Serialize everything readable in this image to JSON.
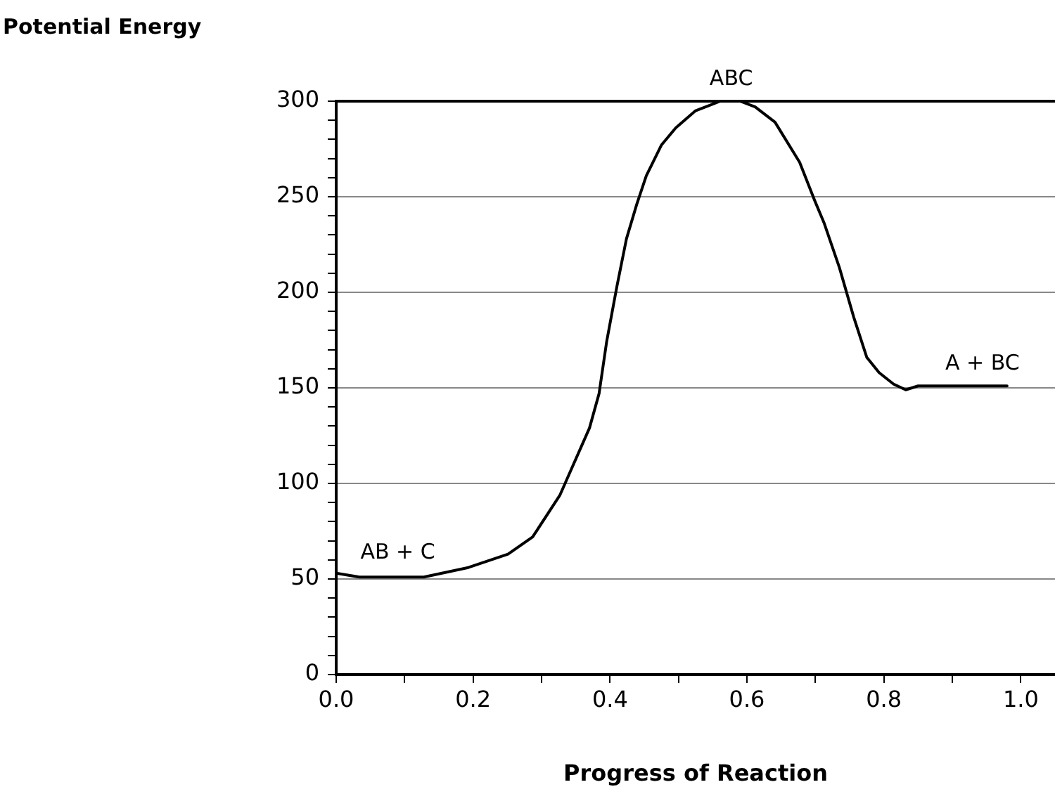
{
  "chart_data": {
    "type": "line",
    "ylabel": "Potential Energy",
    "xlabel": "Progress of Reaction",
    "x": [
      0,
      0.034,
      0.128,
      0.193,
      0.251,
      0.287,
      0.327,
      0.37,
      0.384,
      0.395,
      0.41,
      0.424,
      0.439,
      0.453,
      0.475,
      0.496,
      0.525,
      0.561,
      0.59,
      0.612,
      0.641,
      0.677,
      0.699,
      0.713,
      0.735,
      0.756,
      0.775,
      0.793,
      0.814,
      0.832,
      0.85,
      0.98
    ],
    "series": [
      {
        "color": "#000000",
        "values": [
          53,
          51,
          51,
          56,
          63,
          72,
          94,
          129,
          147,
          174,
          203,
          228,
          246,
          261,
          277,
          286,
          295,
          300,
          300,
          297,
          289,
          268,
          248,
          236,
          213,
          187,
          166,
          158,
          152,
          149,
          151,
          151
        ]
      }
    ],
    "xlim": [
      0,
      1.05
    ],
    "xticks": [
      {
        "value": 0,
        "label": "0.0"
      },
      {
        "value": 0.1,
        "label": null
      },
      {
        "value": 0.2,
        "label": "0.2"
      },
      {
        "value": 0.3,
        "label": null
      },
      {
        "value": 0.4,
        "label": "0.4"
      },
      {
        "value": 0.5,
        "label": null
      },
      {
        "value": 0.6,
        "label": "0.6"
      },
      {
        "value": 0.7,
        "label": null
      },
      {
        "value": 0.8,
        "label": "0.8"
      },
      {
        "value": 0.9,
        "label": null
      },
      {
        "value": 1,
        "label": "1.0"
      }
    ],
    "ylim": [
      0,
      300
    ],
    "yticks": [
      0,
      {
        "value": 10,
        "label": null
      },
      {
        "value": 20,
        "label": null
      },
      {
        "value": 30,
        "label": null
      },
      {
        "value": 40,
        "label": null
      },
      50,
      {
        "value": 60,
        "label": null
      },
      {
        "value": 70,
        "label": null
      },
      {
        "value": 80,
        "label": null
      },
      {
        "value": 90,
        "label": null
      },
      100,
      {
        "value": 110,
        "label": null
      },
      {
        "value": 120,
        "label": null
      },
      {
        "value": 130,
        "label": null
      },
      {
        "value": 140,
        "label": null
      },
      150,
      {
        "value": 160,
        "label": null
      },
      {
        "value": 170,
        "label": null
      },
      {
        "value": 180,
        "label": null
      },
      {
        "value": 190,
        "label": null
      },
      200,
      {
        "value": 210,
        "label": null
      },
      {
        "value": 220,
        "label": null
      },
      {
        "value": 230,
        "label": null
      },
      {
        "value": 240,
        "label": null
      },
      250,
      {
        "value": 260,
        "label": null
      },
      {
        "value": 270,
        "label": null
      },
      {
        "value": 280,
        "label": null
      },
      {
        "value": 290,
        "label": null
      },
      300
    ],
    "grid": "y",
    "legend": false,
    "marker": "none",
    "line_style": "solid",
    "annotations": [
      {
        "text": "ABC",
        "x": 0.577,
        "y": 300
      },
      {
        "text": "AB + C",
        "x": 0.09,
        "y": 52
      },
      {
        "text": "A + BC",
        "x": 0.944,
        "y": 151
      }
    ]
  }
}
